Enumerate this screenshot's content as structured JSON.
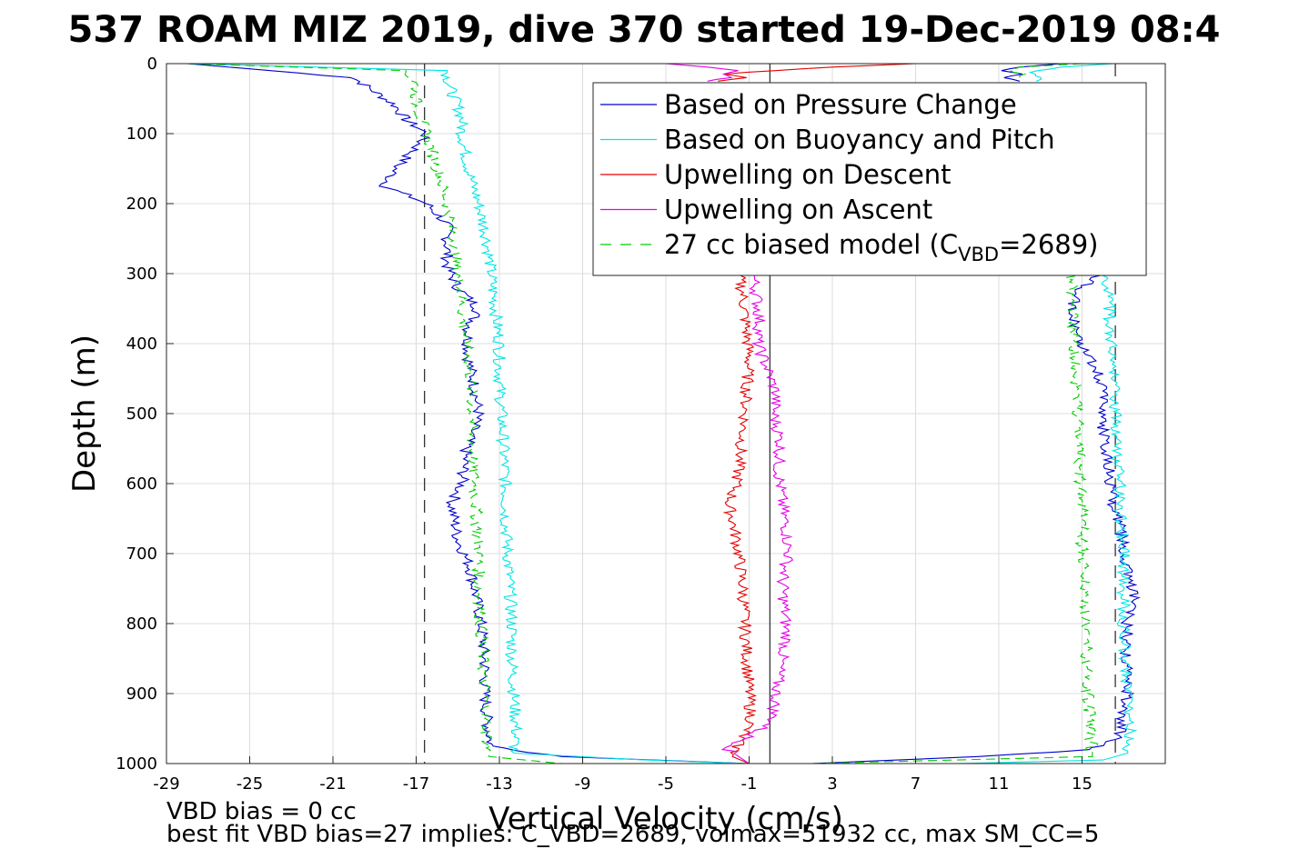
{
  "chart_data": {
    "type": "line",
    "title": "537 ROAM MIZ 2019, dive 370 started 19-Dec-2019 08:4",
    "xlabel": "Vertical Velocity (cm/s)",
    "ylabel": "Depth (m)",
    "xlim": [
      -29,
      19
    ],
    "ylim": [
      0,
      1000
    ],
    "y_reversed": true,
    "x_ticks": [
      "-29",
      "-25",
      "-21",
      "-17",
      "-13",
      "-9",
      "-5",
      "-1",
      "3",
      "7",
      "11",
      "15"
    ],
    "y_ticks": [
      "0",
      "100",
      "200",
      "300",
      "400",
      "500",
      "600",
      "700",
      "800",
      "900",
      "1000"
    ],
    "grid": true,
    "legend_position": "top-right",
    "legend": [
      {
        "label": "Based on Pressure Change",
        "color": "#0000cc",
        "style": "solid"
      },
      {
        "label": "Based on Buoyancy and Pitch",
        "color": "#00e5e5",
        "style": "solid"
      },
      {
        "label": "Upwelling on Descent",
        "color": "#e50000",
        "style": "solid"
      },
      {
        "label": "Upwelling on Ascent",
        "color": "#e500e5",
        "style": "solid"
      },
      {
        "label_prefix": "27 cc biased model (C",
        "label_sub": "VBD",
        "label_suffix": "=2689)",
        "color": "#00cc00",
        "style": "dashed"
      }
    ],
    "reference_lines": [
      {
        "x": -16.6,
        "style": "dashed"
      },
      {
        "x": 0.0,
        "style": "solid"
      },
      {
        "x": 16.6,
        "style": "dashed"
      }
    ],
    "series": [
      {
        "name": "Based on Pressure Change",
        "color": "#0000cc",
        "depth": [
          0,
          10,
          20,
          40,
          60,
          80,
          100,
          120,
          150,
          175,
          200,
          230,
          260,
          290,
          320,
          350,
          380,
          420,
          460,
          500,
          550,
          600,
          630,
          680,
          720,
          780,
          820,
          860,
          900,
          940,
          975,
          990,
          1000
        ],
        "velocity": [
          -28,
          -24,
          -20,
          -19,
          -18,
          -17.5,
          -16.5,
          -17,
          -18,
          -18.5,
          -16.5,
          -15.5,
          -15.5,
          -15.5,
          -15,
          -14,
          -14.5,
          -14.5,
          -14.2,
          -14,
          -14.6,
          -14.8,
          -15.3,
          -15,
          -14.4,
          -14,
          -13.8,
          -13.7,
          -13.7,
          -13.6,
          -13.4,
          -10,
          -1
        ]
      },
      {
        "name": "Based on Buoyancy and Pitch",
        "color": "#00e5e5",
        "depth": [
          0,
          10,
          20,
          40,
          60,
          80,
          100,
          150,
          200,
          250,
          300,
          350,
          400,
          450,
          500,
          550,
          600,
          650,
          700,
          750,
          800,
          850,
          900,
          950,
          985,
          995,
          1000
        ],
        "velocity": [
          -28,
          -15.5,
          -15.5,
          -15.3,
          -15,
          -14.8,
          -14.8,
          -14.5,
          -14,
          -13.6,
          -13.4,
          -13.2,
          -13,
          -13,
          -12.9,
          -12.8,
          -12.7,
          -12.7,
          -12.6,
          -12.5,
          -12.4,
          -12.4,
          -12.3,
          -12.2,
          -12.3,
          -6,
          -1
        ]
      },
      {
        "name": "Upwelling on Descent",
        "color": "#e50000",
        "depth": [
          300,
          330,
          360,
          390,
          420,
          460,
          500,
          550,
          600,
          630,
          650,
          700,
          750,
          800,
          850,
          900,
          940,
          970,
          990,
          1000
        ],
        "velocity": [
          -1.5,
          -1.3,
          -1.2,
          -1.1,
          -1,
          -1.1,
          -1.2,
          -1.4,
          -1.6,
          -2,
          -1.8,
          -1.5,
          -1.3,
          -1.2,
          -1.1,
          -1,
          -0.9,
          -1.5,
          -1.8,
          -1
        ]
      },
      {
        "name": "Upwelling on Ascent",
        "color": "#e500e5",
        "depth": [
          300,
          340,
          370,
          400,
          430,
          470,
          500,
          540,
          580,
          630,
          670,
          700,
          740,
          780,
          820,
          860,
          900,
          940,
          980,
          1000
        ],
        "velocity": [
          -0.8,
          -0.6,
          -0.5,
          -0.6,
          -0.2,
          0.3,
          0.2,
          0.5,
          0.4,
          0.6,
          0.8,
          0.9,
          0.6,
          0.7,
          0.8,
          0.5,
          0.3,
          0.1,
          -2,
          -1
        ]
      },
      {
        "name": "27 cc biased model",
        "color": "#00cc00",
        "dashed": true,
        "depth": [
          0,
          10,
          30,
          60,
          100,
          150,
          200,
          250,
          300,
          350,
          400,
          450,
          500,
          550,
          600,
          650,
          700,
          750,
          800,
          850,
          900,
          950,
          990,
          1000
        ],
        "velocity": [
          -28,
          -17.5,
          -17,
          -17,
          -16.5,
          -16,
          -15.5,
          -15.2,
          -15,
          -14.8,
          -14.6,
          -14.4,
          -14.3,
          -14.3,
          -14.2,
          -14.1,
          -14,
          -14,
          -13.9,
          -13.8,
          -13.7,
          -13.6,
          -13.5,
          -10
        ]
      },
      {
        "name": "Based on Pressure Change ascent",
        "color": "#0000cc",
        "depth": [
          1000,
          990,
          980,
          960,
          930,
          900,
          870,
          830,
          790,
          760,
          720,
          690,
          660,
          630,
          600,
          560,
          520,
          480,
          440,
          400,
          380,
          360,
          340,
          320,
          300
        ],
        "velocity": [
          2,
          10,
          15.5,
          16.8,
          17,
          17.2,
          17.2,
          17.1,
          17.2,
          17.5,
          17.1,
          17,
          16.8,
          16.5,
          16.4,
          16.2,
          16,
          16,
          15.8,
          15,
          14.8,
          14.4,
          14.6,
          15,
          16
        ]
      },
      {
        "name": "Based on Buoyancy and Pitch ascent",
        "color": "#00e5e5",
        "depth": [
          1000,
          995,
          985,
          970,
          950,
          900,
          850,
          800,
          750,
          700,
          650,
          600,
          550,
          500,
          450,
          400,
          350,
          300
        ],
        "velocity": [
          9,
          16,
          17.2,
          17.3,
          17.3,
          17.2,
          17.1,
          17,
          17,
          17,
          16.9,
          16.8,
          16.7,
          16.6,
          16.5,
          16.4,
          16.3,
          16.2
        ]
      },
      {
        "name": "27 cc biased model ascent",
        "color": "#00cc00",
        "dashed": true,
        "depth": [
          1000,
          990,
          950,
          900,
          850,
          800,
          750,
          700,
          650,
          600,
          550,
          500,
          450,
          400,
          350,
          300
        ],
        "velocity": [
          2,
          15.5,
          15.4,
          15.3,
          15.2,
          15.2,
          15.1,
          15,
          15,
          14.9,
          14.9,
          14.8,
          14.7,
          14.6,
          14.5,
          14.5
        ]
      },
      {
        "name": "Based on Buoyancy and Pitch surface",
        "color": "#00e5e5",
        "depth": [
          0,
          5,
          10,
          15,
          20,
          25
        ],
        "velocity": [
          16.5,
          14,
          13,
          12.5,
          13,
          12.8
        ]
      },
      {
        "name": "Based on Pressure Change surface",
        "color": "#0000cc",
        "depth": [
          0,
          5,
          10,
          15,
          20,
          25
        ],
        "velocity": [
          14,
          12,
          11,
          12,
          11.5,
          12
        ]
      },
      {
        "name": "27 cc biased model surface",
        "color": "#00cc00",
        "dashed": true,
        "depth": [
          0,
          5,
          10,
          15,
          20
        ],
        "velocity": [
          15,
          12,
          11.5,
          12.5,
          12
        ]
      },
      {
        "name": "Upwelling on Descent surface",
        "color": "#e50000",
        "depth": [
          0,
          5,
          10,
          15,
          20,
          25
        ],
        "velocity": [
          7,
          3,
          0,
          -2,
          -1,
          -2.5
        ]
      },
      {
        "name": "Upwelling on Ascent surface",
        "color": "#e500e5",
        "depth": [
          0,
          5,
          10,
          15,
          20,
          25
        ],
        "velocity": [
          -5,
          -3,
          -1.5,
          -2.5,
          -2,
          -3
        ]
      }
    ]
  },
  "footer": {
    "line1": "VBD bias = 0 cc",
    "line2": "best fit VBD bias=27 implies: C_VBD=2689, volmax=51932 cc, max SM_CC=5"
  }
}
